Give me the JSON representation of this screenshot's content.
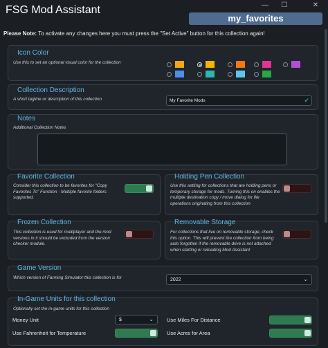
{
  "window": {
    "title": "FSG Mod Assistant",
    "collection_name": "my_favorites",
    "minimize": "—",
    "maximize": "☐",
    "close": "✕"
  },
  "notice": {
    "bold": "Please Note:",
    "text": " To activate any changes here you must press the \"Set Active\" button for this collection again!"
  },
  "icon_color": {
    "title": "Icon Color",
    "description": "Use this to set an optional visual color for the collection",
    "selected_index": 1,
    "swatches": [
      {
        "name": "yellow",
        "color": "#f2a516"
      },
      {
        "name": "gold",
        "color": "#f4b400"
      },
      {
        "name": "orange",
        "color": "#f07a12"
      },
      {
        "name": "pink",
        "color": "#e0368f"
      },
      {
        "name": "purple",
        "color": "#b34fd4"
      },
      {
        "name": "blue",
        "color": "#4a8ef0"
      },
      {
        "name": "teal",
        "color": "#2bb7b2"
      },
      {
        "name": "sky",
        "color": "#5cc7ea"
      },
      {
        "name": "green",
        "color": "#27a845"
      }
    ]
  },
  "description": {
    "title": "Collection Description",
    "help": "A short tagline or description of this collection",
    "value": "My Favorite Mods"
  },
  "notes": {
    "title": "Notes",
    "help": "Additional Collection Notes",
    "value": ""
  },
  "favorite": {
    "title": "Favorite Collection",
    "help": "Consider this collection to be favorites for \"Copy Favorites To\" Function - Multiple favorite folders supported.",
    "enabled": true
  },
  "holding_pen": {
    "title": "Holding Pen Collection",
    "help": "Use this setting for collections that are holding pens or temporary storage for mods. Turning this on enables the multiple destination copy / move dialog for file operations originating from this collection",
    "enabled": false
  },
  "frozen": {
    "title": "Frozen Collection",
    "help": "This collection is used for multiplayer and the mod versions in it should be excluded from the version checker module.",
    "enabled": false
  },
  "removable": {
    "title": "Removable Storage",
    "help": "For collections that live on removable storage, check this option. This will prevent the collection from being auto forgotten if the removable drive is not attached when starting or reloading Mod Assistant",
    "enabled": false
  },
  "game_version": {
    "title": "Game Version",
    "help": "Which version of Farming Simulator this collection is for",
    "value": "2022"
  },
  "units": {
    "title": "In-Game Units for this collection",
    "help": "Optionally set the in-game units for this collection",
    "money_label": "Money Unit",
    "money_value": "$",
    "fahrenheit_label": "Use Fahrenheit for Temperature",
    "fahrenheit_enabled": true,
    "miles_label": "Use Miles For Distance",
    "miles_enabled": true,
    "acres_label": "Use Acres for Area",
    "acres_enabled": true
  },
  "colors": {
    "accent": "#5fb6de",
    "toggle_on": "#2f7a50",
    "toggle_off": "#2c1416",
    "button": "#4f6b8e"
  }
}
